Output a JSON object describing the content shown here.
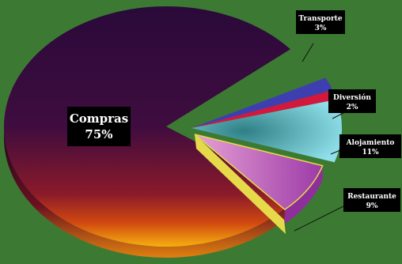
{
  "chart_data": {
    "type": "pie",
    "title": "",
    "categories": [
      "Compras",
      "Transporte",
      "Diversión",
      "Alojamiento",
      "Restaurante"
    ],
    "values": [
      75,
      3,
      2,
      11,
      9
    ],
    "value_suffix": "%",
    "labels": [
      {
        "name": "Compras",
        "value": "75%"
      },
      {
        "name": "Transporte",
        "value": "3%"
      },
      {
        "name": "Diversión",
        "value": "2%"
      },
      {
        "name": "Alojamiento",
        "value": "11%"
      },
      {
        "name": "Restaurante",
        "value": "9%"
      }
    ],
    "colors": {
      "background": "#3c7a33",
      "compras": [
        "#2a0a3a",
        "#5a1040",
        "#c03010",
        "#f5b010"
      ],
      "transporte": "#3d3fb0",
      "diversion": "#d3173d",
      "alojamiento": "#7ed4de",
      "restaurante": "#b04fb8",
      "restaurante_side": "#e6d94a",
      "label_box": "#000000",
      "label_text": "#ffffff"
    },
    "exploded": [
      "Transporte",
      "Diversión",
      "Alojamiento",
      "Restaurante"
    ],
    "style": "3d-exploded-pie"
  }
}
